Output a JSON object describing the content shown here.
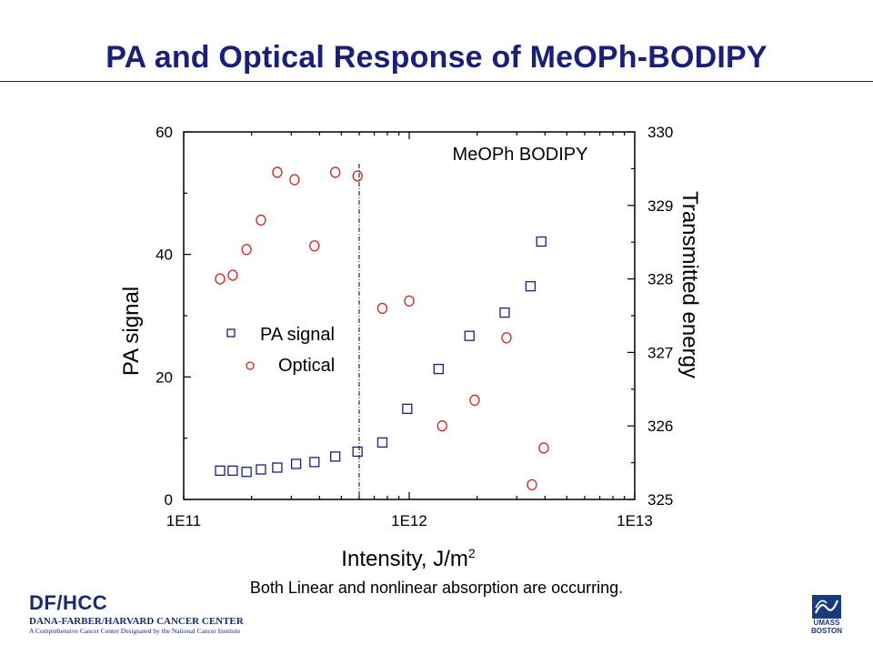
{
  "slide": {
    "title": "PA and Optical Response of MeOPh-BODIPY",
    "caption": "Both Linear and nonlinear absorption are occurring."
  },
  "footer": {
    "org_abbrev": "DF/HCC",
    "org_name": "DANA-FARBER/HARVARD CANCER CENTER",
    "org_tagline": "A Comprehensive Cancer Center Designated by the National Cancer Institute",
    "university_line1": "UMASS",
    "university_line2": "BOSTON",
    "university_logo_icon": "umass-boston-logo"
  },
  "colors": {
    "title": "#1a1f7a",
    "pa_series": "#1a1f7a",
    "optical_series": "#cc2222"
  },
  "chart_data": {
    "type": "scatter",
    "title": "MeOPh BODIPY",
    "xlabel": "Intensity, J/m",
    "xlabel_superscript": "2",
    "ylabel": "PA signal",
    "y2label": "Transmitted energy",
    "x_scale": "log",
    "xlim": [
      100000000000.0,
      10000000000000.0
    ],
    "ylim": [
      0,
      60
    ],
    "y2lim": [
      325,
      330
    ],
    "x_ticks": [
      {
        "value": 100000000000.0,
        "label": "1E11"
      },
      {
        "value": 1000000000000.0,
        "label": "1E12"
      },
      {
        "value": 10000000000000.0,
        "label": "1E13"
      }
    ],
    "y_ticks": [
      {
        "value": 0,
        "label": "0"
      },
      {
        "value": 20,
        "label": "20"
      },
      {
        "value": 40,
        "label": "40"
      },
      {
        "value": 60,
        "label": "60"
      }
    ],
    "y2_ticks": [
      {
        "value": 325,
        "label": "325"
      },
      {
        "value": 326,
        "label": "326"
      },
      {
        "value": 327,
        "label": "327"
      },
      {
        "value": 328,
        "label": "328"
      },
      {
        "value": 329,
        "label": "329"
      },
      {
        "value": 330,
        "label": "330"
      }
    ],
    "threshold_x": 600000000000.0,
    "legend_position": "left",
    "series": [
      {
        "name": "PA signal",
        "axis": "left",
        "marker": "square",
        "color": "#1a1f7a",
        "x": [
          145000000000.0,
          165000000000.0,
          190000000000.0,
          220000000000.0,
          260000000000.0,
          315000000000.0,
          380000000000.0,
          470000000000.0,
          590000000000.0,
          760000000000.0,
          980000000000.0,
          1350000000000.0,
          1850000000000.0,
          2650000000000.0,
          3450000000000.0,
          3850000000000.0
        ],
        "y": [
          4.7,
          4.7,
          4.5,
          4.9,
          5.2,
          5.8,
          6.1,
          7.0,
          7.8,
          9.3,
          14.8,
          21.3,
          26.7,
          30.5,
          34.8,
          42.1
        ]
      },
      {
        "name": "Optical",
        "axis": "right",
        "marker": "circle",
        "color": "#cc2222",
        "x": [
          145000000000.0,
          165000000000.0,
          190000000000.0,
          220000000000.0,
          260000000000.0,
          310000000000.0,
          380000000000.0,
          470000000000.0,
          590000000000.0,
          760000000000.0,
          1000000000000.0,
          1400000000000.0,
          1950000000000.0,
          2700000000000.0,
          3500000000000.0,
          3950000000000.0
        ],
        "y": [
          328.0,
          328.05,
          328.4,
          328.8,
          329.45,
          329.35,
          328.45,
          329.45,
          329.4,
          327.6,
          327.7,
          326.0,
          326.35,
          327.2,
          325.2,
          325.7
        ]
      }
    ]
  }
}
